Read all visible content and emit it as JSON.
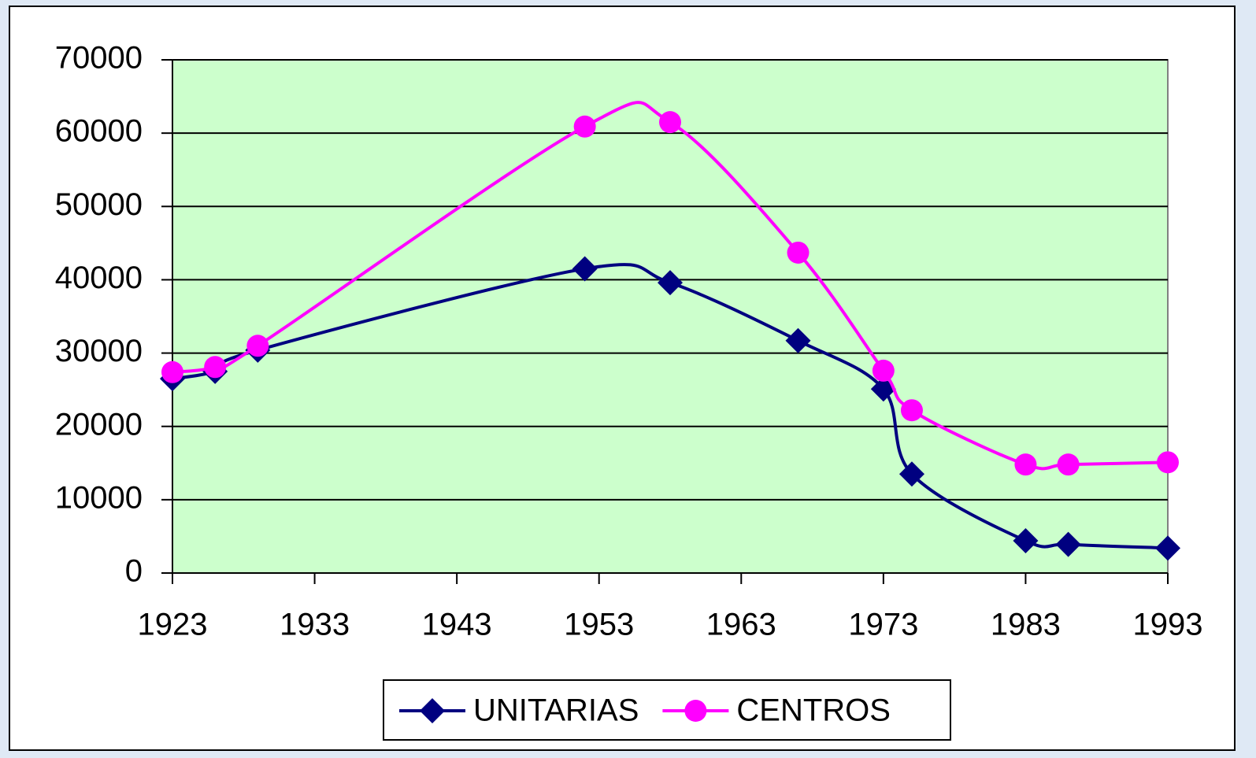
{
  "chart_data": {
    "type": "line",
    "x": [
      1923,
      1926,
      1929,
      1952,
      1958,
      1967,
      1973,
      1975,
      1983,
      1986,
      1993
    ],
    "series": [
      {
        "name": "UNITARIAS",
        "color": "#000080",
        "marker": "diamond",
        "values": [
          26500,
          27500,
          30400,
          41500,
          39600,
          31700,
          25100,
          13500,
          4400,
          3900,
          3400
        ]
      },
      {
        "name": "CENTROS",
        "color": "#ff00ff",
        "marker": "circle",
        "values": [
          27400,
          28100,
          31000,
          60900,
          61500,
          43700,
          27600,
          22200,
          14800,
          14800,
          15100
        ]
      }
    ],
    "xlim": [
      1923,
      1993
    ],
    "xticks": [
      1923,
      1933,
      1943,
      1953,
      1963,
      1973,
      1983,
      1993
    ],
    "ylim": [
      0,
      70000
    ],
    "yticks": [
      0,
      10000,
      20000,
      30000,
      40000,
      50000,
      60000,
      70000
    ],
    "grid": true,
    "legend": "bottom",
    "plot_background": "#ccffcc"
  }
}
